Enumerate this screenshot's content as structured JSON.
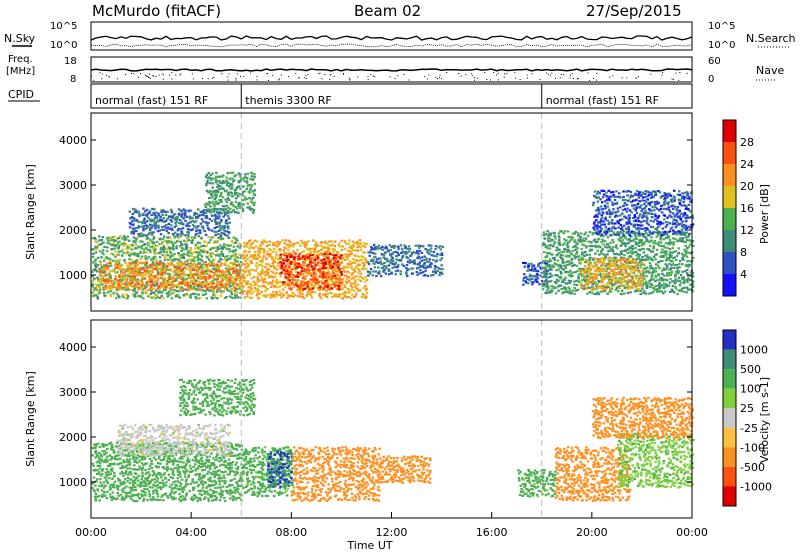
{
  "header": {
    "station": "McMurdo (fitACF)",
    "beam": "Beam 02",
    "date": "27/Sep/2015"
  },
  "status_panel": {
    "left_labels": [
      "N.Sky",
      "Freq.",
      "[MHz]",
      "CPID"
    ],
    "right_labels": [
      "N.Search",
      "Nave"
    ],
    "sky_ticks": [
      "10^5",
      "10^0"
    ],
    "search_ticks": [
      "10^5",
      "10^0"
    ],
    "freq_ticks": [
      "18",
      "8"
    ],
    "nave_ticks": [
      "60",
      "0"
    ],
    "cpid_segments": [
      {
        "label": "normal (fast) 151 RF",
        "start_h": 0,
        "end_h": 6
      },
      {
        "label": "themis 3300 RF",
        "start_h": 6,
        "end_h": 18
      },
      {
        "label": "normal (fast) 151 RF",
        "start_h": 18,
        "end_h": 24
      }
    ]
  },
  "chart_data": [
    {
      "type": "heatmap",
      "panel": "power",
      "xlabel": "",
      "ylabel": "Slant Range [km]",
      "xlim": [
        0,
        24
      ],
      "ylim": [
        200,
        4600
      ],
      "y_ticks": [
        "1000",
        "2000",
        "3000",
        "4000"
      ],
      "colorbar": {
        "label": "Power [dB]",
        "ticks": [
          "4",
          "8",
          "12",
          "16",
          "20",
          "24",
          "28"
        ],
        "colors": [
          "#1010ff",
          "#3050c8",
          "#3c8c78",
          "#4cb050",
          "#e0c020",
          "#ff9020",
          "#ff5010",
          "#e00000"
        ],
        "range": [
          0,
          32
        ]
      },
      "vertical_markers_h": [
        6,
        18
      ],
      "regions": [
        {
          "t0": 0.0,
          "t1": 6.0,
          "r0": 500,
          "r1": 1900,
          "value": 14
        },
        {
          "t0": 0.3,
          "t1": 6.0,
          "r0": 700,
          "r1": 1300,
          "value": 22
        },
        {
          "t0": 1.5,
          "t1": 5.5,
          "r0": 1900,
          "r1": 2500,
          "value": 8
        },
        {
          "t0": 4.5,
          "t1": 6.5,
          "r0": 2400,
          "r1": 3300,
          "value": 12
        },
        {
          "t0": 6.0,
          "t1": 11.0,
          "r0": 500,
          "r1": 1800,
          "value": 20
        },
        {
          "t0": 7.5,
          "t1": 10.0,
          "r0": 700,
          "r1": 1500,
          "value": 27
        },
        {
          "t0": 11.0,
          "t1": 14.0,
          "r0": 1000,
          "r1": 1700,
          "value": 8
        },
        {
          "t0": 17.2,
          "t1": 18.3,
          "r0": 800,
          "r1": 1300,
          "value": 6
        },
        {
          "t0": 18.0,
          "t1": 24.0,
          "r0": 600,
          "r1": 2000,
          "value": 12
        },
        {
          "t0": 19.5,
          "t1": 22.0,
          "r0": 700,
          "r1": 1400,
          "value": 20
        },
        {
          "t0": 20.0,
          "t1": 24.0,
          "r0": 1900,
          "r1": 2900,
          "value": 6
        }
      ]
    },
    {
      "type": "heatmap",
      "panel": "velocity",
      "xlabel": "Time UT",
      "ylabel": "Slant Range [km]",
      "xlim": [
        0,
        24
      ],
      "ylim": [
        200,
        4600
      ],
      "x_ticks": [
        "00:00",
        "04:00",
        "08:00",
        "12:00",
        "16:00",
        "20:00",
        "00:00"
      ],
      "y_ticks": [
        "1000",
        "2000",
        "3000",
        "4000"
      ],
      "colorbar": {
        "label": "Velocity [m s-1]",
        "ticks": [
          "1000",
          "500",
          "100",
          "25",
          "-25",
          "-100",
          "-500",
          "-1000"
        ],
        "colors": [
          "#2030c0",
          "#3c8c78",
          "#4cb050",
          "#80d040",
          "#c8c8c8",
          "#ffc040",
          "#ff9020",
          "#ff5010",
          "#e00000"
        ]
      },
      "vertical_markers_h": [
        6,
        18
      ],
      "regions": [
        {
          "t0": 0.0,
          "t1": 6.0,
          "r0": 600,
          "r1": 1900,
          "value": 300
        },
        {
          "t0": 1.0,
          "t1": 5.5,
          "r0": 1600,
          "r1": 2300,
          "value": 0
        },
        {
          "t0": 3.5,
          "t1": 6.5,
          "r0": 2500,
          "r1": 3300,
          "value": 200
        },
        {
          "t0": 6.0,
          "t1": 8.0,
          "r0": 700,
          "r1": 1800,
          "value": 150
        },
        {
          "t0": 7.0,
          "t1": 8.0,
          "r0": 900,
          "r1": 1700,
          "value": 1000
        },
        {
          "t0": 8.0,
          "t1": 11.5,
          "r0": 600,
          "r1": 1800,
          "value": -300
        },
        {
          "t0": 11.5,
          "t1": 13.5,
          "r0": 1000,
          "r1": 1600,
          "value": -300
        },
        {
          "t0": 17.0,
          "t1": 18.5,
          "r0": 700,
          "r1": 1300,
          "value": 150
        },
        {
          "t0": 18.5,
          "t1": 21.5,
          "r0": 600,
          "r1": 1800,
          "value": -300
        },
        {
          "t0": 21.0,
          "t1": 24.0,
          "r0": 900,
          "r1": 2100,
          "value": 80
        },
        {
          "t0": 20.0,
          "t1": 24.0,
          "r0": 2000,
          "r1": 2900,
          "value": -200
        }
      ]
    }
  ]
}
